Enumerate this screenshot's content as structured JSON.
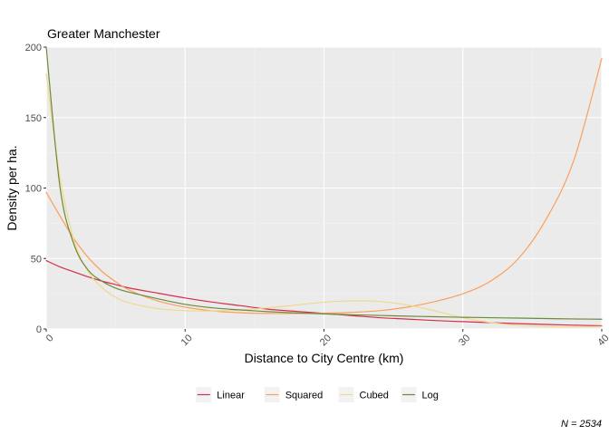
{
  "chart_data": {
    "type": "line",
    "title": "Greater Manchester",
    "xlabel": "Distance to City Centre (km)",
    "ylabel": "Density per ha.",
    "xlim": [
      0,
      40
    ],
    "ylim": [
      0,
      200
    ],
    "x_ticks": [
      0,
      10,
      20,
      30,
      40
    ],
    "x_tick_labels": [
      "0",
      "10",
      "20",
      "30",
      "40"
    ],
    "y_ticks": [
      0,
      50,
      100,
      150,
      200
    ],
    "y_tick_labels": [
      "0",
      "50",
      "100",
      "150",
      "200"
    ],
    "grid": true,
    "legend_position": "bottom",
    "caption": "N =  2534",
    "x": [
      0,
      1,
      2,
      3,
      4,
      5,
      6,
      8,
      10,
      12,
      14,
      16,
      18,
      20,
      22,
      24,
      26,
      28,
      30,
      32,
      34,
      36,
      38,
      40
    ],
    "series": [
      {
        "name": "Linear",
        "color": "#d62d4b",
        "values": [
          48.5,
          44.0,
          40.5,
          37.0,
          34.0,
          31.5,
          29.0,
          25.5,
          22.0,
          19.0,
          16.5,
          14.0,
          12.5,
          11.0,
          9.5,
          8.0,
          7.0,
          6.0,
          5.2,
          4.5,
          3.8,
          3.2,
          2.7,
          2.3
        ]
      },
      {
        "name": "Squared",
        "color": "#fd9f5b",
        "values": [
          97.0,
          80.0,
          64.0,
          51.0,
          41.0,
          33.5,
          27.5,
          20.0,
          15.5,
          12.8,
          11.5,
          11.0,
          11.0,
          11.2,
          11.8,
          13.0,
          15.5,
          19.5,
          25.0,
          34.0,
          50.0,
          78.0,
          120.0,
          192.0
        ]
      },
      {
        "name": "Cubed",
        "color": "#f0d98a",
        "values": [
          181.0,
          107.0,
          63.0,
          41.0,
          29.5,
          22.5,
          18.5,
          14.5,
          13.0,
          12.8,
          13.5,
          15.0,
          17.0,
          19.0,
          20.0,
          19.5,
          17.0,
          12.8,
          8.0,
          4.6,
          2.6,
          1.7,
          1.5,
          1.8
        ]
      },
      {
        "name": "Log",
        "color": "#6b8a3d",
        "values": [
          200.0,
          100.0,
          60.0,
          42.0,
          34.0,
          29.0,
          26.0,
          21.5,
          17.5,
          15.0,
          13.5,
          12.3,
          11.4,
          10.7,
          10.1,
          9.6,
          9.1,
          8.7,
          8.3,
          8.0,
          7.7,
          7.4,
          7.1,
          6.9
        ]
      }
    ]
  }
}
